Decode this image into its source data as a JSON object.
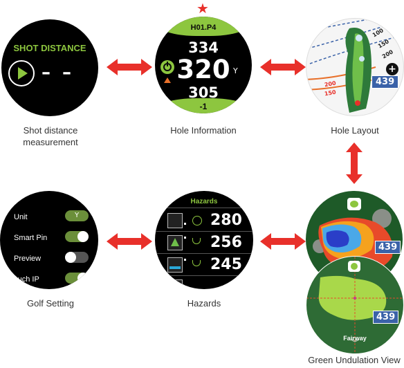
{
  "shot_distance": {
    "title": "SHOT DISTANCE",
    "value": "– –",
    "caption_line1": "Shot distance",
    "caption_line2": "measurement"
  },
  "hole_info": {
    "hole_label": "H01.P4",
    "back": "334",
    "center": "320",
    "unit": "Y",
    "front": "305",
    "score": "-1",
    "caption": "Hole Information"
  },
  "hole_layout": {
    "arc_labels": [
      "100",
      "150",
      "200"
    ],
    "left_labels": [
      "200",
      "150"
    ],
    "distance_badge": "439",
    "zoom_symbol": "+",
    "caption": "Hole Layout"
  },
  "golf_setting": {
    "items": [
      {
        "label": "Unit",
        "value": "Y"
      },
      {
        "label": "Smart Pin",
        "value": ""
      },
      {
        "label": "Preview",
        "value": ""
      },
      {
        "label": "Touch IP",
        "value": ""
      }
    ],
    "caption": "Golf Setting"
  },
  "hazards": {
    "title": "Hazards",
    "rows": [
      {
        "distance": "280"
      },
      {
        "distance": "256"
      },
      {
        "distance": "245"
      }
    ],
    "caption": "Hazards"
  },
  "green_undulation": {
    "distance_badge_top": "439",
    "distance_badge_bottom": "439",
    "fairway_label": "Fairway",
    "caption": "Green Undulation View"
  },
  "colors": {
    "accent_green": "#8dc63f",
    "arrow_red": "#e8302a",
    "badge_blue": "#3a62a8"
  }
}
